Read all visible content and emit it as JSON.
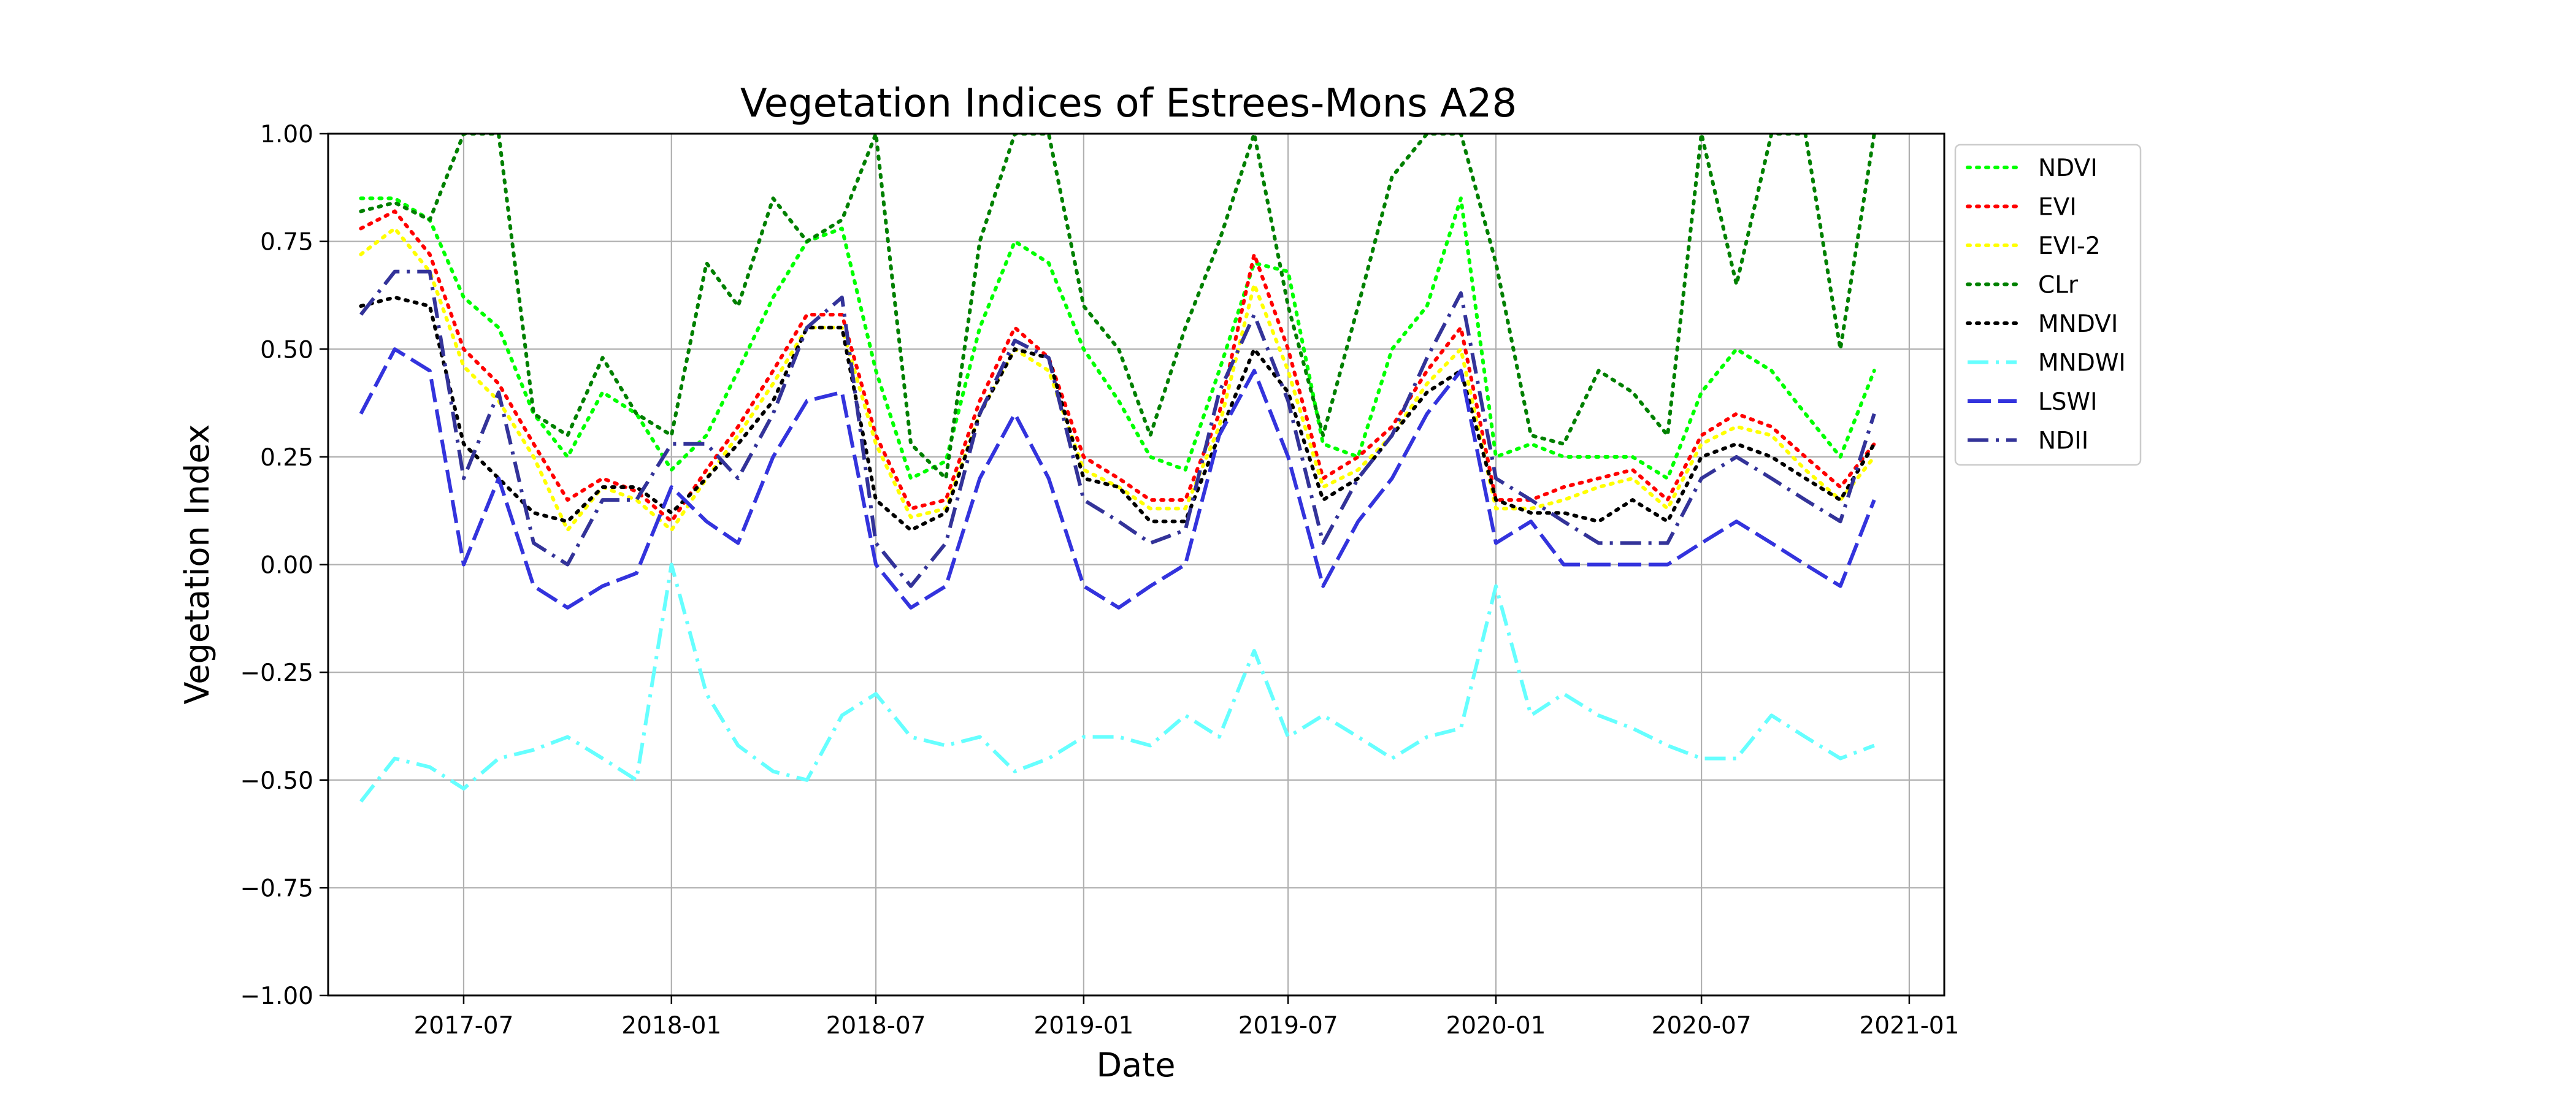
{
  "chart_data": {
    "type": "line",
    "title": "Vegetation Indices of Estrees-Mons A28",
    "xlabel": "Date",
    "ylabel": "Vegetation Index",
    "xlim": [
      "2017-03-03",
      "2021-02-01"
    ],
    "ylim": [
      -1.0,
      1.0
    ],
    "x_ticks": [
      "2017-07-01",
      "2018-01-01",
      "2018-07-01",
      "2019-01-01",
      "2019-07-01",
      "2020-01-01",
      "2020-07-01",
      "2021-01-01"
    ],
    "x_tick_labels": [
      "2017-07",
      "2018-01",
      "2018-07",
      "2019-01",
      "2019-07",
      "2020-01",
      "2020-07",
      "2021-01"
    ],
    "y_ticks": [
      -1.0,
      -0.75,
      -0.5,
      -0.25,
      0.0,
      0.25,
      0.5,
      0.75,
      1.0
    ],
    "y_tick_labels": [
      "−1.00",
      "−0.75",
      "−0.50",
      "−0.25",
      "0.00",
      "0.25",
      "0.50",
      "0.75",
      "1.00"
    ],
    "grid": true,
    "legend_position": "outside-right-top",
    "x": [
      "2017-04-01",
      "2017-05-01",
      "2017-06-01",
      "2017-07-01",
      "2017-08-01",
      "2017-09-01",
      "2017-10-01",
      "2017-11-01",
      "2017-12-01",
      "2018-01-01",
      "2018-02-01",
      "2018-03-01",
      "2018-04-01",
      "2018-05-01",
      "2018-06-01",
      "2018-07-01",
      "2018-08-01",
      "2018-09-01",
      "2018-10-01",
      "2018-11-01",
      "2018-12-01",
      "2019-01-01",
      "2019-02-01",
      "2019-03-01",
      "2019-04-01",
      "2019-05-01",
      "2019-06-01",
      "2019-07-01",
      "2019-08-01",
      "2019-09-01",
      "2019-10-01",
      "2019-11-01",
      "2019-12-01",
      "2020-01-01",
      "2020-02-01",
      "2020-03-01",
      "2020-04-01",
      "2020-05-01",
      "2020-06-01",
      "2020-07-01",
      "2020-08-01",
      "2020-09-01",
      "2020-10-01",
      "2020-11-01",
      "2020-12-01"
    ],
    "series": [
      {
        "name": "NDVI",
        "color": "#00ff00",
        "dash": "dotted",
        "values": [
          0.85,
          0.85,
          0.8,
          0.62,
          0.55,
          0.35,
          0.25,
          0.4,
          0.35,
          0.22,
          0.3,
          0.45,
          0.62,
          0.75,
          0.78,
          0.45,
          0.2,
          0.24,
          0.55,
          0.75,
          0.7,
          0.5,
          0.38,
          0.25,
          0.22,
          0.45,
          0.7,
          0.68,
          0.28,
          0.25,
          0.5,
          0.6,
          0.85,
          0.25,
          0.28,
          0.25,
          0.25,
          0.25,
          0.2,
          0.4,
          0.5,
          0.45,
          0.35,
          0.25,
          0.45
        ]
      },
      {
        "name": "EVI",
        "color": "#ff0000",
        "dash": "dotted",
        "values": [
          0.78,
          0.82,
          0.72,
          0.5,
          0.42,
          0.28,
          0.15,
          0.2,
          0.17,
          0.1,
          0.22,
          0.32,
          0.45,
          0.58,
          0.58,
          0.3,
          0.13,
          0.15,
          0.38,
          0.55,
          0.48,
          0.25,
          0.2,
          0.15,
          0.15,
          0.35,
          0.72,
          0.5,
          0.2,
          0.25,
          0.32,
          0.45,
          0.55,
          0.15,
          0.15,
          0.18,
          0.2,
          0.22,
          0.15,
          0.3,
          0.35,
          0.32,
          0.25,
          0.18,
          0.28
        ]
      },
      {
        "name": "EVI-2",
        "color": "#ffff00",
        "dash": "dotted",
        "values": [
          0.72,
          0.78,
          0.68,
          0.46,
          0.38,
          0.25,
          0.08,
          0.18,
          0.15,
          0.08,
          0.2,
          0.3,
          0.42,
          0.55,
          0.55,
          0.28,
          0.11,
          0.13,
          0.35,
          0.5,
          0.45,
          0.22,
          0.18,
          0.13,
          0.13,
          0.32,
          0.65,
          0.45,
          0.18,
          0.22,
          0.3,
          0.42,
          0.5,
          0.13,
          0.13,
          0.15,
          0.18,
          0.2,
          0.13,
          0.28,
          0.32,
          0.3,
          0.22,
          0.15,
          0.25
        ]
      },
      {
        "name": "CLr",
        "color": "#008000",
        "dash": "dotted",
        "values": [
          0.82,
          0.84,
          0.8,
          1.0,
          1.0,
          0.35,
          0.3,
          0.48,
          0.35,
          0.3,
          0.7,
          0.6,
          0.85,
          0.75,
          0.8,
          1.0,
          0.28,
          0.2,
          0.75,
          1.0,
          1.0,
          0.6,
          0.5,
          0.3,
          0.55,
          0.75,
          1.0,
          0.6,
          0.3,
          0.6,
          0.9,
          1.0,
          1.0,
          0.7,
          0.3,
          0.28,
          0.45,
          0.4,
          0.3,
          1.0,
          0.65,
          1.0,
          1.0,
          0.5,
          1.0
        ]
      },
      {
        "name": "MNDVI",
        "color": "#000000",
        "dash": "dotted",
        "values": [
          0.6,
          0.62,
          0.6,
          0.28,
          0.2,
          0.12,
          0.1,
          0.18,
          0.18,
          0.12,
          0.2,
          0.28,
          0.38,
          0.55,
          0.55,
          0.15,
          0.08,
          0.12,
          0.35,
          0.5,
          0.48,
          0.2,
          0.18,
          0.1,
          0.1,
          0.3,
          0.5,
          0.4,
          0.15,
          0.2,
          0.3,
          0.4,
          0.45,
          0.15,
          0.12,
          0.12,
          0.1,
          0.15,
          0.1,
          0.25,
          0.28,
          0.25,
          0.2,
          0.15,
          0.28
        ]
      },
      {
        "name": "MNDWI",
        "color": "#66ffff",
        "dash": "dashdot",
        "values": [
          -0.55,
          -0.45,
          -0.47,
          -0.52,
          -0.45,
          -0.43,
          -0.4,
          -0.45,
          -0.5,
          0.0,
          -0.3,
          -0.42,
          -0.48,
          -0.5,
          -0.35,
          -0.3,
          -0.4,
          -0.42,
          -0.4,
          -0.48,
          -0.45,
          -0.4,
          -0.4,
          -0.42,
          -0.35,
          -0.4,
          -0.2,
          -0.4,
          -0.35,
          -0.4,
          -0.45,
          -0.4,
          -0.38,
          -0.05,
          -0.35,
          -0.3,
          -0.35,
          -0.38,
          -0.42,
          -0.45,
          -0.45,
          -0.35,
          -0.4,
          -0.45,
          -0.42
        ]
      },
      {
        "name": "LSWI",
        "color": "#3333dd",
        "dash": "dashed",
        "values": [
          0.35,
          0.5,
          0.45,
          0.0,
          0.2,
          -0.05,
          -0.1,
          -0.05,
          -0.02,
          0.18,
          0.1,
          0.05,
          0.25,
          0.38,
          0.4,
          0.0,
          -0.1,
          -0.05,
          0.2,
          0.35,
          0.2,
          -0.05,
          -0.1,
          -0.05,
          0.0,
          0.3,
          0.45,
          0.25,
          -0.05,
          0.1,
          0.2,
          0.35,
          0.45,
          0.05,
          0.1,
          0.0,
          0.0,
          0.0,
          0.0,
          0.05,
          0.1,
          0.05,
          0.0,
          -0.05,
          0.15
        ]
      },
      {
        "name": "NDII",
        "color": "#333399",
        "dash": "dashdot",
        "values": [
          0.58,
          0.68,
          0.68,
          0.2,
          0.4,
          0.05,
          0.0,
          0.15,
          0.15,
          0.28,
          0.28,
          0.2,
          0.35,
          0.55,
          0.62,
          0.05,
          -0.05,
          0.05,
          0.35,
          0.52,
          0.48,
          0.15,
          0.1,
          0.05,
          0.08,
          0.4,
          0.58,
          0.38,
          0.05,
          0.2,
          0.3,
          0.48,
          0.63,
          0.2,
          0.15,
          0.1,
          0.05,
          0.05,
          0.05,
          0.2,
          0.25,
          0.2,
          0.15,
          0.1,
          0.35
        ]
      }
    ]
  }
}
